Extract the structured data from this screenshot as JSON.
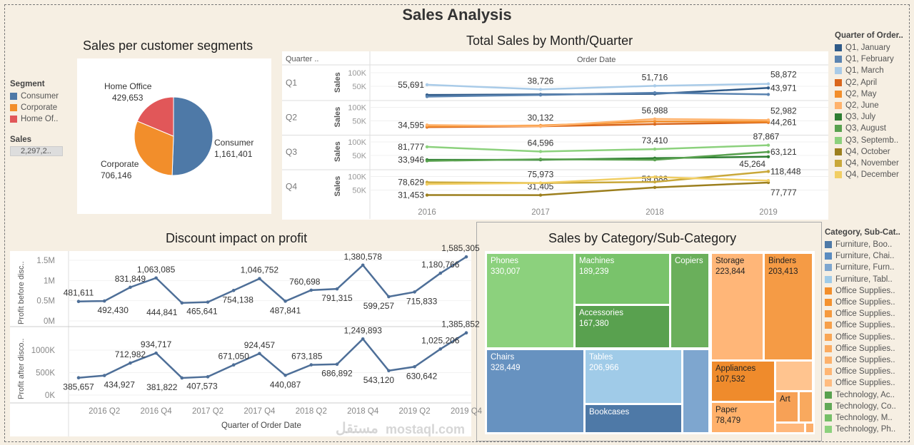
{
  "title": "Sales Analysis",
  "segments": {
    "title": "Sales per customer segments",
    "legend_title": "Segment",
    "items": [
      {
        "label": "Consumer",
        "value": 1161401,
        "display": "1,161,401",
        "color": "#4e79a7"
      },
      {
        "label": "Corporate",
        "value": 706146,
        "display": "706,146",
        "color": "#f28e2b"
      },
      {
        "label": "Home Of..",
        "full": "Home Office",
        "value": 429653,
        "display": "429,653",
        "color": "#e15759"
      }
    ],
    "filter_label": "Sales",
    "filter_value": "2,297,2.."
  },
  "monthly": {
    "title": "Total Sales by Month/Quarter",
    "row_header": "Quarter ..",
    "col_header": "Order Date",
    "axis_label": "Sales",
    "years": [
      "2016",
      "2017",
      "2018",
      "2019"
    ],
    "yticks": [
      "100K",
      "50K"
    ],
    "legend_title": "Quarter of Order..",
    "rows": [
      {
        "quarter": "Q1",
        "series": [
          {
            "name": "Q1, January",
            "color": "#2f5a88",
            "values": [
              18000,
              20000,
              22000,
              43971
            ],
            "labels": [
              false,
              false,
              false,
              true
            ]
          },
          {
            "name": "Q1, February",
            "color": "#5b84b1",
            "values": [
              12000,
              18000,
              26000,
              20000
            ],
            "labels": [
              false,
              false,
              false,
              false
            ]
          },
          {
            "name": "Q1, March",
            "color": "#a9cbe8",
            "values": [
              55691,
              38726,
              51716,
              58872
            ],
            "labels": [
              true,
              true,
              true,
              true
            ]
          }
        ]
      },
      {
        "quarter": "Q2",
        "series": [
          {
            "name": "Q2, April",
            "color": "#d9661c",
            "values": [
              27000,
              30000,
              38000,
              44261
            ],
            "labels": [
              false,
              false,
              false,
              true
            ]
          },
          {
            "name": "Q2, May",
            "color": "#f28e2b",
            "values": [
              30000,
              33000,
              48000,
              47000
            ],
            "labels": [
              false,
              false,
              false,
              false
            ]
          },
          {
            "name": "Q2, June",
            "color": "#ffb26b",
            "values": [
              34595,
              30132,
              56988,
              52982
            ],
            "labels": [
              true,
              true,
              true,
              true
            ]
          }
        ]
      },
      {
        "quarter": "Q3",
        "series": [
          {
            "name": "Q3, July",
            "color": "#2e7d32",
            "values": [
              33946,
              34000,
              40000,
              45264
            ],
            "labels": [
              true,
              false,
              false,
              true
            ]
          },
          {
            "name": "Q3, August",
            "color": "#59a14f",
            "values": [
              30000,
              36000,
              34000,
              63121
            ],
            "labels": [
              false,
              false,
              false,
              true
            ]
          },
          {
            "name": "Q3, September",
            "color": "#8cd17d",
            "values": [
              81777,
              64596,
              73410,
              87867
            ],
            "labels": [
              true,
              true,
              true,
              true
            ]
          }
        ]
      },
      {
        "quarter": "Q4",
        "series": [
          {
            "name": "Q4, October",
            "color": "#9c7f1e",
            "values": [
              31453,
              31405,
              59688,
              77777
            ],
            "labels": [
              true,
              true,
              true,
              true
            ]
          },
          {
            "name": "Q4, November",
            "color": "#c9a83a",
            "values": [
              78629,
              75973,
              80000,
              118448
            ],
            "labels": [
              true,
              true,
              false,
              true
            ]
          },
          {
            "name": "Q4, December",
            "color": "#f1ce63",
            "values": [
              72000,
              76000,
              98000,
              85000
            ],
            "labels": [
              false,
              false,
              false,
              false
            ]
          }
        ]
      }
    ],
    "legend": [
      "Q1, January",
      "Q1, February",
      "Q1, March",
      "Q2, April",
      "Q2, May",
      "Q2, June",
      "Q3, July",
      "Q3, August",
      "Q3, Septemb..",
      "Q4, October",
      "Q4, November",
      "Q4, December"
    ]
  },
  "chart_data": [
    {
      "type": "line",
      "title": "Discount impact on profit",
      "xlabel": "Quarter of Order Date",
      "x": [
        "2016 Q1",
        "2016 Q2",
        "2016 Q3",
        "2016 Q4",
        "2017 Q1",
        "2017 Q2",
        "2017 Q3",
        "2017 Q4",
        "2018 Q1",
        "2018 Q2",
        "2018 Q3",
        "2018 Q4",
        "2019 Q1",
        "2019 Q2",
        "2019 Q3",
        "2019 Q4"
      ],
      "xticks": [
        "2016 Q2",
        "2016 Q4",
        "2017 Q2",
        "2017 Q4",
        "2018 Q2",
        "2018 Q4",
        "2019 Q2",
        "2019 Q4"
      ],
      "series": [
        {
          "name": "Profit before disc..",
          "yticks": [
            "1.5M",
            "1M",
            "0.5M",
            "0M"
          ],
          "ylim": [
            0,
            1600000
          ],
          "values": [
            481611,
            492430,
            831849,
            1063085,
            444841,
            465641,
            754138,
            1046752,
            487841,
            760698,
            791315,
            1380578,
            599257,
            715833,
            1180766,
            1585305
          ]
        },
        {
          "name": "Profit after disco..",
          "yticks": [
            "1000K",
            "500K",
            "0K"
          ],
          "ylim": [
            0,
            1400000
          ],
          "values": [
            385657,
            434927,
            712982,
            934717,
            381822,
            407573,
            671050,
            924457,
            440087,
            673185,
            686892,
            1249893,
            543120,
            630642,
            1025206,
            1385852
          ]
        }
      ],
      "color": "#4e6f98"
    }
  ],
  "treemap": {
    "title": "Sales by Category/Sub-Category",
    "legend_title": "Category, Sub-Cat..",
    "tiles": [
      {
        "label": "Phones",
        "value": "330,007",
        "color": "#8cd17d"
      },
      {
        "label": "Machines",
        "value": "189,239",
        "color": "#79c36b"
      },
      {
        "label": "Accessories",
        "value": "167,380",
        "color": "#59a14f"
      },
      {
        "label": "Copiers",
        "value": "",
        "color": "#6aaf5b"
      },
      {
        "label": "Chairs",
        "value": "328,449",
        "color": "#6792c0"
      },
      {
        "label": "Tables",
        "value": "206,966",
        "color": "#a0cbe8"
      },
      {
        "label": "Bookcases",
        "value": "",
        "color": "#4e79a7"
      },
      {
        "label": "",
        "value": "",
        "color": "#7ea6cf"
      },
      {
        "label": "Storage",
        "value": "223,844",
        "color": "#ffb678"
      },
      {
        "label": "Binders",
        "value": "203,413",
        "color": "#f59b45"
      },
      {
        "label": "Appliances",
        "value": "107,532",
        "color": "#ef8b2c"
      },
      {
        "label": "Paper",
        "value": "78,479",
        "color": "#ffb06a"
      },
      {
        "label": "",
        "value": "",
        "color": "#ffc48f"
      },
      {
        "label": "Art",
        "value": "",
        "color": "#f7a156"
      },
      {
        "label": "",
        "value": "",
        "color": "#f9a95e"
      },
      {
        "label": "",
        "value": "",
        "color": "#ffb87c"
      },
      {
        "label": "",
        "value": "",
        "color": "#fcae6a"
      }
    ],
    "legend": [
      {
        "label": "Furniture, Boo..",
        "color": "#4e79a7"
      },
      {
        "label": "Furniture, Chai..",
        "color": "#5b8cc0"
      },
      {
        "label": "Furniture, Furn..",
        "color": "#7ea6cf"
      },
      {
        "label": "Furniture, Tabl..",
        "color": "#a0cbe8"
      },
      {
        "label": "Office Supplies..",
        "color": "#f28e2b"
      },
      {
        "label": "Office Supplies..",
        "color": "#f4922f"
      },
      {
        "label": "Office Supplies..",
        "color": "#f59a3f"
      },
      {
        "label": "Office Supplies..",
        "color": "#f7a04a"
      },
      {
        "label": "Office Supplies..",
        "color": "#f9a655"
      },
      {
        "label": "Office Supplies..",
        "color": "#fbab60"
      },
      {
        "label": "Office Supplies..",
        "color": "#fdb16b"
      },
      {
        "label": "Office Supplies..",
        "color": "#ffb674"
      },
      {
        "label": "Office Supplies..",
        "color": "#ffbc80"
      },
      {
        "label": "Technology, Ac..",
        "color": "#59a14f"
      },
      {
        "label": "Technology, Co..",
        "color": "#62a957"
      },
      {
        "label": "Technology, M..",
        "color": "#76bf68"
      },
      {
        "label": "Technology, Ph..",
        "color": "#8cd17d"
      }
    ]
  },
  "watermark": {
    "arabic": "مستقل",
    "latin": "mostaql.com"
  }
}
